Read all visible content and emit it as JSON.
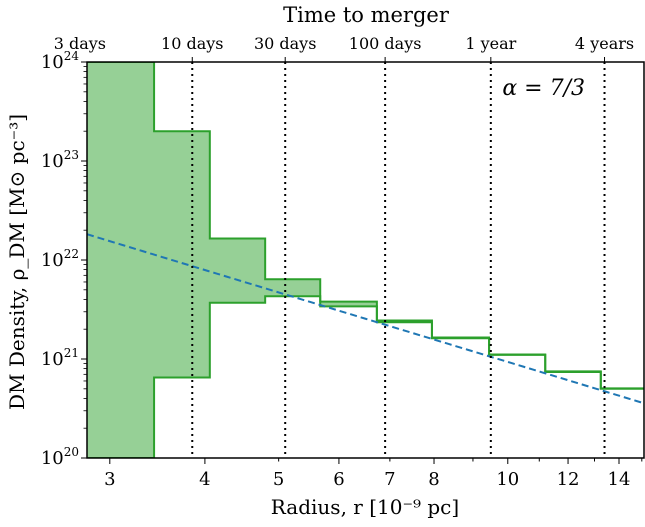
{
  "chart_data": {
    "type": "step-band",
    "annotation": "α = 7/3",
    "xlabel": "Radius, r  [10⁻⁹ pc]",
    "ylabel": "DM Density, ρ_DM  [M⊙ pc⁻³]",
    "top_axis_label": "Time to merger",
    "x_scale": "log",
    "y_scale": "log",
    "xlim": [
      2.8,
      15.1
    ],
    "ylim": [
      1e+20,
      1e+24
    ],
    "x_ticks": [
      3,
      4,
      6,
      8,
      10,
      12,
      14
    ],
    "x_tick_labels": [
      "3",
      "4",
      "6",
      "8",
      "10",
      "12",
      "14"
    ],
    "x_minor_ticks": [
      5,
      7,
      9,
      11,
      13,
      15
    ],
    "x_minor_tick_labels": [
      "5",
      "7",
      "",
      "",
      "",
      "",
      ""
    ],
    "y_ticks": [
      1e+20,
      1e+21,
      1e+22,
      1e+23,
      1e+24
    ],
    "y_tick_labels": [
      "10^20",
      "10^21",
      "10^22",
      "10^23",
      "10^24"
    ],
    "time_markers": [
      {
        "label": "3 days",
        "r": 2.74
      },
      {
        "label": "10 days",
        "r": 3.85
      },
      {
        "label": "30 days",
        "r": 5.1
      },
      {
        "label": "100 days",
        "r": 6.9
      },
      {
        "label": "1 year",
        "r": 9.5
      },
      {
        "label": "4 years",
        "r": 13.4
      }
    ],
    "band": {
      "color": "#96d096",
      "edge_color": "#2ca02c",
      "bins": [
        {
          "r_lo": 2.8,
          "r_hi": 3.43,
          "lower": 1e+20,
          "upper": 1e+24
        },
        {
          "r_lo": 3.43,
          "r_hi": 4.06,
          "lower": 6.5e+20,
          "upper": 2e+23
        },
        {
          "r_lo": 4.06,
          "r_hi": 4.8,
          "lower": 3.7e+21,
          "upper": 1.65e+22
        },
        {
          "r_lo": 4.8,
          "r_hi": 5.67,
          "lower": 4.3e+21,
          "upper": 6.4e+21
        },
        {
          "r_lo": 5.67,
          "r_hi": 6.73,
          "lower": 3.4e+21,
          "upper": 3.8e+21
        },
        {
          "r_lo": 6.73,
          "r_hi": 7.95,
          "lower": 2.35e+21,
          "upper": 2.45e+21
        },
        {
          "r_lo": 7.95,
          "r_hi": 9.45,
          "lower": 1.62e+21,
          "upper": 1.65e+21
        },
        {
          "r_lo": 9.45,
          "r_hi": 11.2,
          "lower": 1.1e+21,
          "upper": 1.11e+21
        },
        {
          "r_lo": 11.2,
          "r_hi": 13.25,
          "lower": 7.4e+20,
          "upper": 7.5e+20
        },
        {
          "r_lo": 13.25,
          "r_hi": 15.1,
          "lower": 5e+20,
          "upper": 5.05e+20
        }
      ]
    },
    "power_law": {
      "color": "#1f77b4",
      "style": "dashed",
      "alpha": 2.333,
      "r_ref": 3.0,
      "rho_ref": 1.55e+22
    }
  }
}
